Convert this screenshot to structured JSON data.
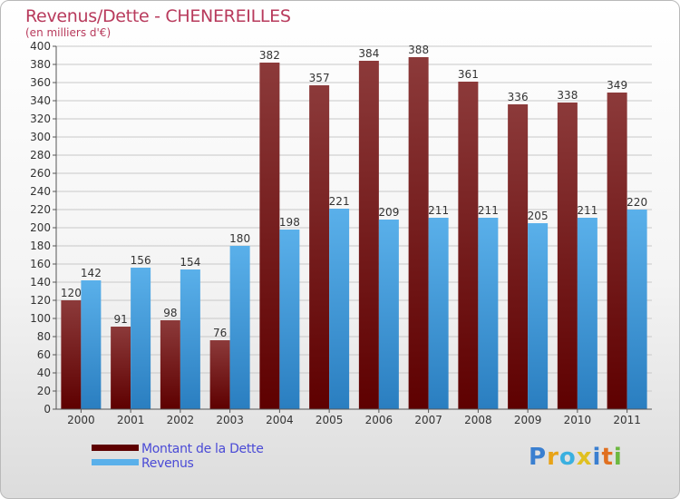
{
  "title": "Revenus/Dette - CHENEREILLES",
  "unit_label": "(en milliers d'€)",
  "legend": {
    "debt_label": "Montant de la Dette",
    "revenue_label": "Revenus"
  },
  "logo": {
    "text": "Proxiti",
    "letters": [
      {
        "char": "P",
        "color": "#3a7fd0"
      },
      {
        "char": "r",
        "color": "#e8a317"
      },
      {
        "char": "o",
        "color": "#3ab0e0"
      },
      {
        "char": "x",
        "color": "#e0c020"
      },
      {
        "char": "i",
        "color": "#3a7fd0"
      },
      {
        "char": "t",
        "color": "#e07020"
      },
      {
        "char": "i",
        "color": "#6cb840"
      }
    ]
  },
  "colors": {
    "debt_dark": "#5e0000",
    "debt_light": "#8c3a3a",
    "revenue_dark": "#2a7ec0",
    "revenue_light": "#5ab0ea",
    "title": "#b83a5c",
    "legend_text": "#4a4ad6",
    "grid": "#c8c8c8"
  },
  "chart_data": {
    "type": "bar",
    "categories": [
      "2000",
      "2001",
      "2002",
      "2003",
      "2004",
      "2005",
      "2006",
      "2007",
      "2008",
      "2009",
      "2010",
      "2011"
    ],
    "series": [
      {
        "name": "Montant de la Dette",
        "values": [
          120,
          91,
          98,
          76,
          382,
          357,
          384,
          388,
          361,
          336,
          338,
          349
        ]
      },
      {
        "name": "Revenus",
        "values": [
          142,
          156,
          154,
          180,
          198,
          221,
          209,
          211,
          211,
          205,
          211,
          220
        ]
      }
    ],
    "ylim": [
      0,
      400
    ],
    "ytick_step": 20,
    "grid": true,
    "legend_position": "bottom-left"
  }
}
